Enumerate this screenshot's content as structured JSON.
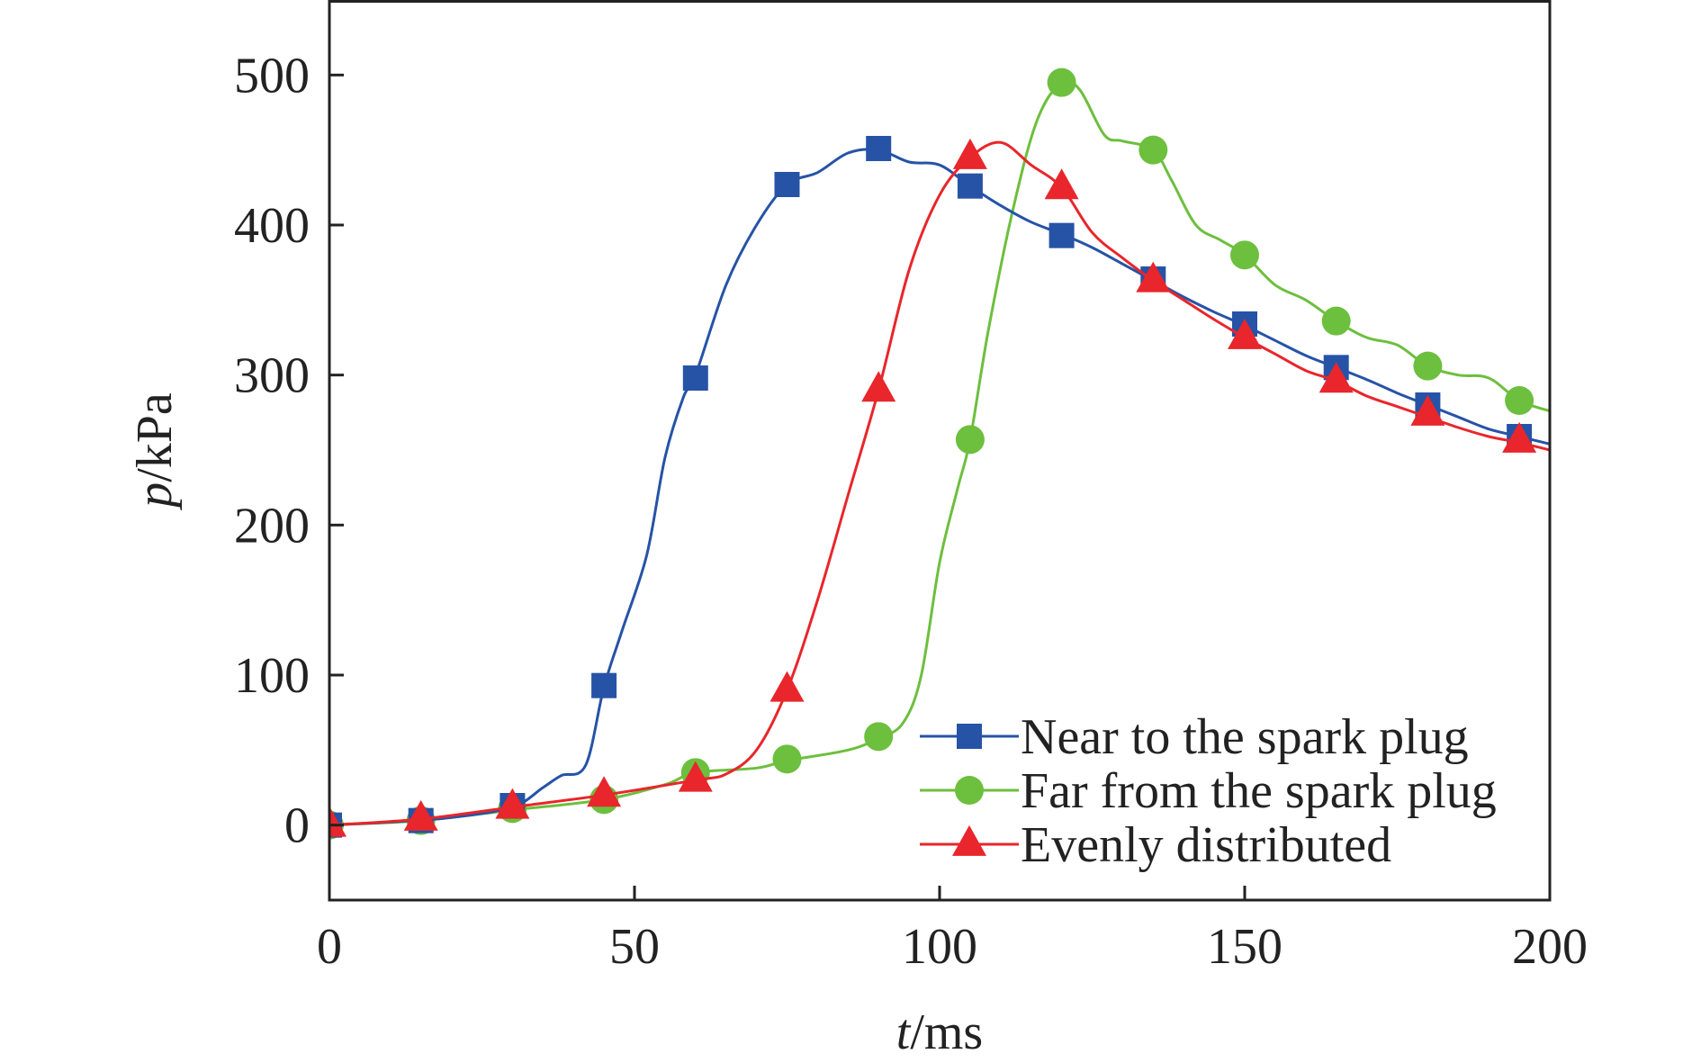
{
  "chart_data": {
    "type": "line",
    "xlabel": {
      "var": "t",
      "unit": "/ms"
    },
    "ylabel": {
      "var": "p",
      "unit": "/kPa"
    },
    "xlim": [
      0,
      200
    ],
    "ylim": [
      -50,
      550
    ],
    "x_ticks": [
      "0",
      "50",
      "100",
      "150",
      "200"
    ],
    "y_ticks": [
      "0",
      "100",
      "200",
      "300",
      "400",
      "500"
    ],
    "x_tick_values": [
      0,
      50,
      100,
      150,
      200
    ],
    "y_tick_values": [
      0,
      100,
      200,
      300,
      400,
      500
    ],
    "grid": false,
    "legend_position": "bottom-right",
    "series": [
      {
        "name": "Near to the spark plug",
        "color": "#2653a6",
        "marker": "square",
        "line": [
          [
            0,
            0
          ],
          [
            10,
            2
          ],
          [
            20,
            5
          ],
          [
            30,
            12
          ],
          [
            35,
            25
          ],
          [
            38,
            33
          ],
          [
            42,
            40
          ],
          [
            45,
            92
          ],
          [
            48,
            130
          ],
          [
            52,
            180
          ],
          [
            55,
            245
          ],
          [
            58,
            285
          ],
          [
            60,
            300
          ],
          [
            65,
            360
          ],
          [
            70,
            400
          ],
          [
            75,
            427
          ],
          [
            80,
            435
          ],
          [
            85,
            448
          ],
          [
            90,
            450
          ],
          [
            95,
            442
          ],
          [
            100,
            440
          ],
          [
            105,
            426
          ],
          [
            110,
            413
          ],
          [
            115,
            402
          ],
          [
            120,
            394
          ],
          [
            125,
            385
          ],
          [
            130,
            374
          ],
          [
            135,
            363
          ],
          [
            140,
            352
          ],
          [
            145,
            342
          ],
          [
            150,
            333
          ],
          [
            155,
            323
          ],
          [
            160,
            313
          ],
          [
            165,
            305
          ],
          [
            170,
            297
          ],
          [
            175,
            288
          ],
          [
            180,
            280
          ],
          [
            185,
            272
          ],
          [
            190,
            264
          ],
          [
            195,
            259
          ],
          [
            200,
            254
          ]
        ],
        "markers": [
          [
            0,
            0
          ],
          [
            15,
            3
          ],
          [
            30,
            13
          ],
          [
            45,
            93
          ],
          [
            60,
            298
          ],
          [
            75,
            427
          ],
          [
            90,
            451
          ],
          [
            105,
            426
          ],
          [
            120,
            393
          ],
          [
            135,
            364
          ],
          [
            150,
            334
          ],
          [
            165,
            305
          ],
          [
            180,
            280
          ],
          [
            195,
            259
          ]
        ]
      },
      {
        "name": "Far from the spark plug",
        "color": "#6dbf3e",
        "marker": "circle",
        "line": [
          [
            0,
            0
          ],
          [
            15,
            3
          ],
          [
            30,
            10
          ],
          [
            45,
            17
          ],
          [
            55,
            27
          ],
          [
            60,
            35
          ],
          [
            70,
            38
          ],
          [
            75,
            43
          ],
          [
            85,
            50
          ],
          [
            90,
            58
          ],
          [
            94,
            68
          ],
          [
            97,
            100
          ],
          [
            100,
            175
          ],
          [
            103,
            225
          ],
          [
            105,
            257
          ],
          [
            108,
            330
          ],
          [
            112,
            410
          ],
          [
            116,
            470
          ],
          [
            120,
            495
          ],
          [
            123,
            490
          ],
          [
            127,
            460
          ],
          [
            130,
            456
          ],
          [
            135,
            450
          ],
          [
            138,
            430
          ],
          [
            142,
            400
          ],
          [
            146,
            390
          ],
          [
            150,
            380
          ],
          [
            155,
            360
          ],
          [
            160,
            350
          ],
          [
            165,
            336
          ],
          [
            170,
            325
          ],
          [
            175,
            320
          ],
          [
            180,
            306
          ],
          [
            185,
            300
          ],
          [
            190,
            298
          ],
          [
            195,
            283
          ],
          [
            200,
            276
          ]
        ],
        "markers": [
          [
            0,
            0
          ],
          [
            15,
            3
          ],
          [
            30,
            11
          ],
          [
            45,
            17
          ],
          [
            60,
            35
          ],
          [
            75,
            44
          ],
          [
            90,
            59
          ],
          [
            105,
            257
          ],
          [
            120,
            495
          ],
          [
            135,
            450
          ],
          [
            150,
            380
          ],
          [
            165,
            336
          ],
          [
            180,
            306
          ],
          [
            195,
            283
          ]
        ]
      },
      {
        "name": "Evenly distributed",
        "color": "#e8262b",
        "marker": "triangle",
        "line": [
          [
            0,
            0
          ],
          [
            15,
            4
          ],
          [
            30,
            12
          ],
          [
            45,
            20
          ],
          [
            60,
            30
          ],
          [
            65,
            34
          ],
          [
            70,
            50
          ],
          [
            75,
            90
          ],
          [
            80,
            150
          ],
          [
            85,
            220
          ],
          [
            90,
            290
          ],
          [
            95,
            370
          ],
          [
            100,
            420
          ],
          [
            105,
            445
          ],
          [
            110,
            455
          ],
          [
            115,
            440
          ],
          [
            120,
            425
          ],
          [
            125,
            395
          ],
          [
            130,
            378
          ],
          [
            135,
            363
          ],
          [
            140,
            350
          ],
          [
            145,
            337
          ],
          [
            150,
            325
          ],
          [
            155,
            314
          ],
          [
            160,
            303
          ],
          [
            165,
            296
          ],
          [
            170,
            286
          ],
          [
            175,
            279
          ],
          [
            180,
            272
          ],
          [
            185,
            265
          ],
          [
            190,
            259
          ],
          [
            195,
            255
          ],
          [
            200,
            250
          ]
        ],
        "markers": [
          [
            0,
            0
          ],
          [
            15,
            4
          ],
          [
            30,
            12
          ],
          [
            45,
            20
          ],
          [
            60,
            30
          ],
          [
            75,
            90
          ],
          [
            90,
            290
          ],
          [
            105,
            445
          ],
          [
            120,
            425
          ],
          [
            135,
            363
          ],
          [
            150,
            325
          ],
          [
            165,
            296
          ],
          [
            180,
            274
          ],
          [
            195,
            256
          ]
        ]
      }
    ]
  }
}
